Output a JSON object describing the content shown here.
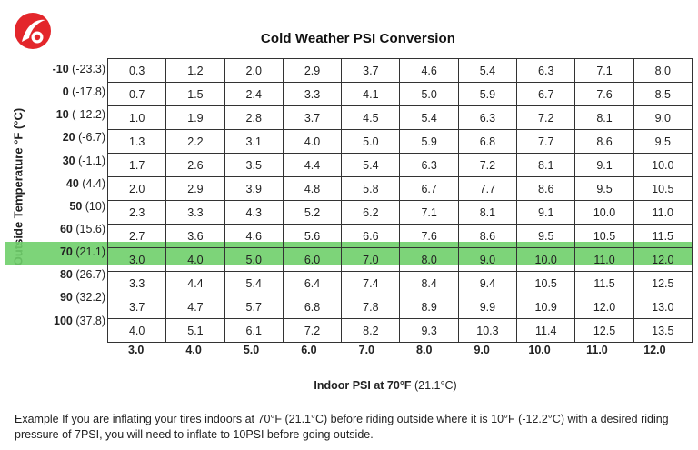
{
  "title": "Cold Weather PSI Conversion",
  "y_axis_label": "Outside Temperature °F (°C)",
  "x_axis_label_bold": "Indoor PSI at 70°F",
  "x_axis_label_suffix": "(21.1°C)",
  "highlight_color": "#6fcf6a",
  "row_labels": [
    {
      "f": "-10",
      "c": "(-23.3)"
    },
    {
      "f": "0",
      "c": "(-17.8)"
    },
    {
      "f": "10",
      "c": "(-12.2)"
    },
    {
      "f": "20",
      "c": "(-6.7)"
    },
    {
      "f": "30",
      "c": "(-1.1)"
    },
    {
      "f": "40",
      "c": "(4.4)"
    },
    {
      "f": "50",
      "c": "(10)"
    },
    {
      "f": "60",
      "c": "(15.6)"
    },
    {
      "f": "70",
      "c": "(21.1)"
    },
    {
      "f": "80",
      "c": "(26.7)"
    },
    {
      "f": "90",
      "c": "(32.2)"
    },
    {
      "f": "100",
      "c": "(37.8)"
    }
  ],
  "table": [
    [
      "0.3",
      "1.2",
      "2.0",
      "2.9",
      "3.7",
      "4.6",
      "5.4",
      "6.3",
      "7.1",
      "8.0"
    ],
    [
      "0.7",
      "1.5",
      "2.4",
      "3.3",
      "4.1",
      "5.0",
      "5.9",
      "6.7",
      "7.6",
      "8.5"
    ],
    [
      "1.0",
      "1.9",
      "2.8",
      "3.7",
      "4.5",
      "5.4",
      "6.3",
      "7.2",
      "8.1",
      "9.0"
    ],
    [
      "1.3",
      "2.2",
      "3.1",
      "4.0",
      "5.0",
      "5.9",
      "6.8",
      "7.7",
      "8.6",
      "9.5"
    ],
    [
      "1.7",
      "2.6",
      "3.5",
      "4.4",
      "5.4",
      "6.3",
      "7.2",
      "8.1",
      "9.1",
      "10.0"
    ],
    [
      "2.0",
      "2.9",
      "3.9",
      "4.8",
      "5.8",
      "6.7",
      "7.7",
      "8.6",
      "9.5",
      "10.5"
    ],
    [
      "2.3",
      "3.3",
      "4.3",
      "5.2",
      "6.2",
      "7.1",
      "8.1",
      "9.1",
      "10.0",
      "11.0"
    ],
    [
      "2.7",
      "3.6",
      "4.6",
      "5.6",
      "6.6",
      "7.6",
      "8.6",
      "9.5",
      "10.5",
      "11.5"
    ],
    [
      "3.0",
      "4.0",
      "5.0",
      "6.0",
      "7.0",
      "8.0",
      "9.0",
      "10.0",
      "11.0",
      "12.0"
    ],
    [
      "3.3",
      "4.4",
      "5.4",
      "6.4",
      "7.4",
      "8.4",
      "9.4",
      "10.5",
      "11.5",
      "12.5"
    ],
    [
      "3.7",
      "4.7",
      "5.7",
      "6.8",
      "7.8",
      "8.9",
      "9.9",
      "10.9",
      "12.0",
      "13.0"
    ],
    [
      "4.0",
      "5.1",
      "6.1",
      "7.2",
      "8.2",
      "9.3",
      "10.3",
      "11.4",
      "12.5",
      "13.5"
    ]
  ],
  "column_headers": [
    "3.0",
    "4.0",
    "5.0",
    "6.0",
    "7.0",
    "8.0",
    "9.0",
    "10.0",
    "11.0",
    "12.0"
  ],
  "example_text": "Example  If you are inflating your tires indoors at 70°F (21.1°C) before riding outside where it is 10°F (-12.2°C) with a desired riding pressure of 7PSI, you will need to inflate to 10PSI before going outside."
}
